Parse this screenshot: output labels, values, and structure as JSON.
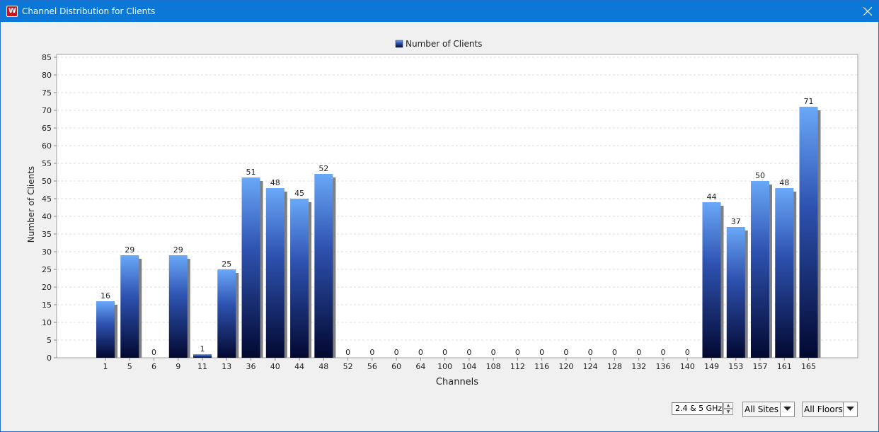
{
  "window": {
    "title": "Channel Distribution for Clients"
  },
  "app_icon_glyph": "W",
  "icons": {
    "app": "app-logo-icon",
    "close": "close-icon",
    "dropdown": "chevron-down-icon"
  },
  "chart_data": {
    "type": "bar",
    "legend": "Number of Clients",
    "xlabel": "Channels",
    "ylabel": "Number of Clients",
    "ylim": [
      0,
      85
    ],
    "ytick_step": 5,
    "grid": true,
    "legend_position": "top-center",
    "categories": [
      "1",
      "5",
      "6",
      "9",
      "11",
      "13",
      "36",
      "40",
      "44",
      "48",
      "52",
      "56",
      "60",
      "64",
      "100",
      "104",
      "108",
      "112",
      "116",
      "120",
      "124",
      "128",
      "132",
      "136",
      "140",
      "149",
      "153",
      "157",
      "161",
      "165"
    ],
    "values": [
      16,
      29,
      0,
      29,
      1,
      25,
      51,
      48,
      45,
      52,
      0,
      0,
      0,
      0,
      0,
      0,
      0,
      0,
      0,
      0,
      0,
      0,
      0,
      0,
      0,
      44,
      37,
      50,
      48,
      71
    ],
    "colors": {
      "bar_top": "#6aa8f8",
      "bar_mid": "#2e52b0",
      "bar_bottom": "#020830",
      "shadow": "#808080",
      "grid": "#dcdcdc"
    }
  },
  "controls": {
    "band_spinner": {
      "value": "2.4 & 5 GHz"
    },
    "sites_combo": {
      "value": "All Sites"
    },
    "floors_combo": {
      "value": "All Floors"
    }
  }
}
